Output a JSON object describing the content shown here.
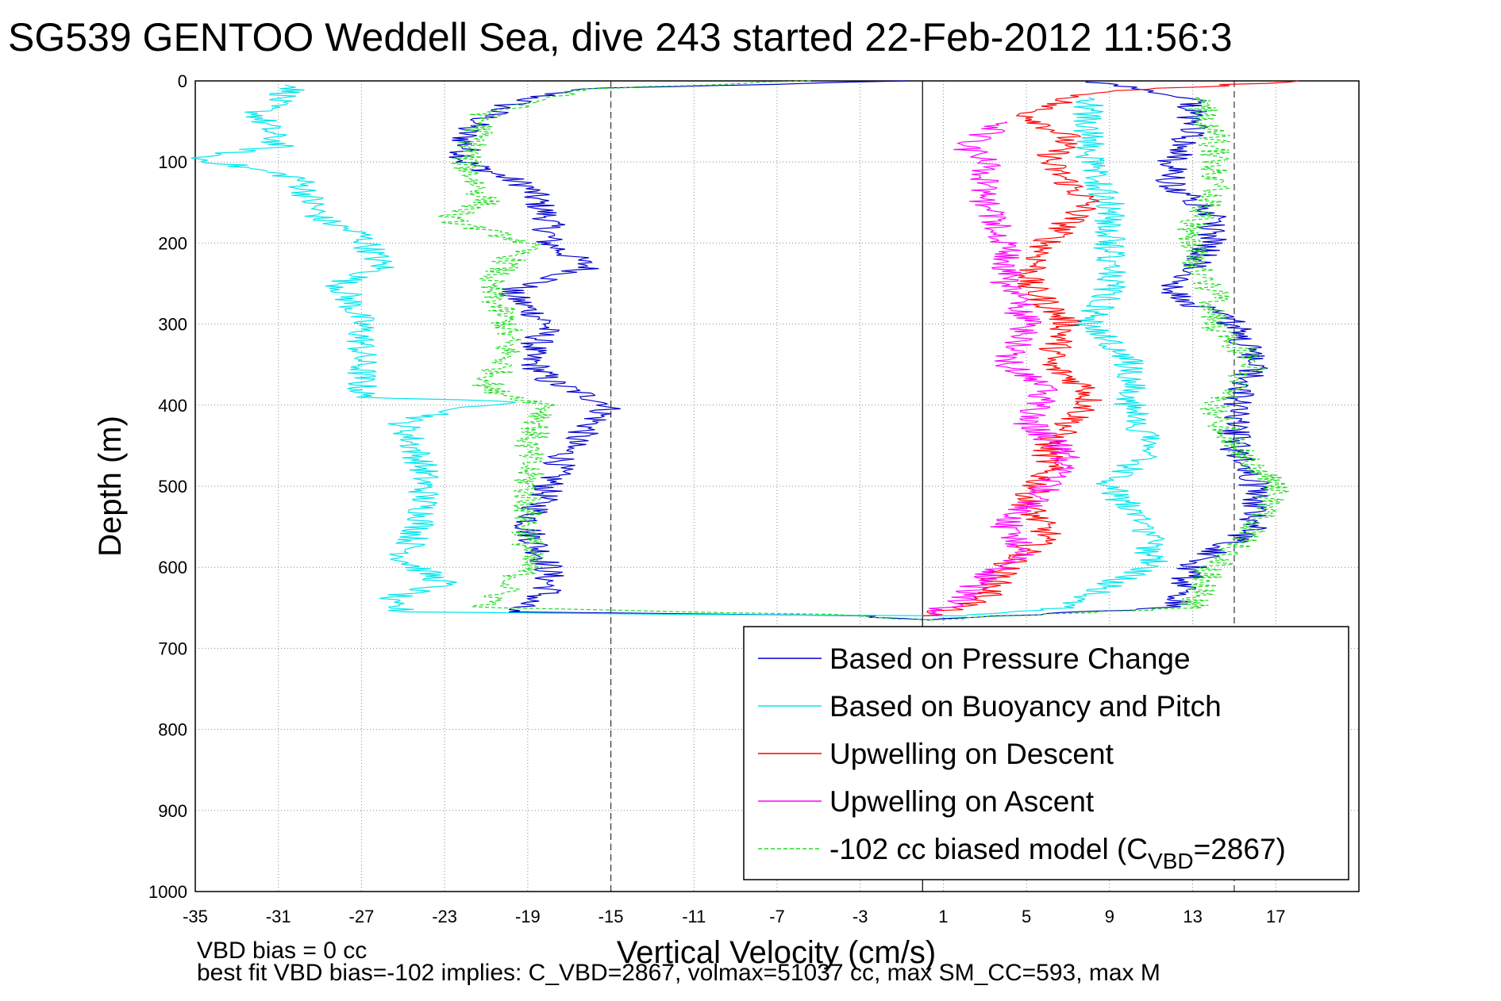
{
  "chart_data": {
    "type": "line",
    "title": "SG539 GENTOO Weddell Sea, dive 243 started 22-Feb-2012 11:56:3",
    "xlabel": "Vertical Velocity (cm/s)",
    "ylabel": "Depth (m)",
    "xlim": [
      -35,
      21
    ],
    "ylim": [
      0,
      1000
    ],
    "y_reversed": true,
    "xticks": [
      "-35",
      "-31",
      "-27",
      "-23",
      "-19",
      "-15",
      "-11",
      "-7",
      "-3",
      "1",
      "5",
      "9",
      "13",
      "17"
    ],
    "yticks": [
      "0",
      "100",
      "200",
      "300",
      "400",
      "500",
      "600",
      "700",
      "800",
      "900",
      "1000"
    ],
    "grid": true,
    "legend_position": "bottom-right",
    "reference_lines": [
      {
        "x": -15,
        "style": "dashed"
      },
      {
        "x": 0,
        "style": "solid"
      },
      {
        "x": 15,
        "style": "dashed"
      }
    ],
    "series": [
      {
        "name": "Based on Pressure Change",
        "color": "#0000cc",
        "style": "solid",
        "points": [
          [
            -1,
            0
          ],
          [
            -17,
            10
          ],
          [
            -20,
            30
          ],
          [
            -22,
            60
          ],
          [
            -22,
            100
          ],
          [
            -19,
            130
          ],
          [
            -18,
            170
          ],
          [
            -18,
            200
          ],
          [
            -16,
            230
          ],
          [
            -20,
            260
          ],
          [
            -18,
            300
          ],
          [
            -19,
            340
          ],
          [
            -18,
            370
          ],
          [
            -15,
            400
          ],
          [
            -17,
            450
          ],
          [
            -18,
            500
          ],
          [
            -19,
            550
          ],
          [
            -18,
            600
          ],
          [
            -18,
            630
          ],
          [
            -20,
            655
          ],
          [
            -3,
            660
          ],
          [
            0,
            665
          ],
          [
            4,
            660
          ],
          [
            12,
            650
          ],
          [
            13,
            600
          ],
          [
            16,
            550
          ],
          [
            16,
            500
          ],
          [
            15,
            450
          ],
          [
            15,
            400
          ],
          [
            16,
            350
          ],
          [
            15,
            300
          ],
          [
            12,
            260
          ],
          [
            13,
            230
          ],
          [
            14,
            200
          ],
          [
            14,
            160
          ],
          [
            12,
            130
          ],
          [
            12,
            100
          ],
          [
            13,
            60
          ],
          [
            13,
            20
          ],
          [
            8,
            0
          ]
        ]
      },
      {
        "name": "Based on Buoyancy and Pitch",
        "color": "#00e5ee",
        "style": "solid",
        "points": [
          [
            -30,
            5
          ],
          [
            -32,
            40
          ],
          [
            -31,
            80
          ],
          [
            -35,
            95
          ],
          [
            -30,
            120
          ],
          [
            -29,
            170
          ],
          [
            -27,
            190
          ],
          [
            -26,
            230
          ],
          [
            -28,
            250
          ],
          [
            -27,
            300
          ],
          [
            -27,
            350
          ],
          [
            -27,
            390
          ],
          [
            -20,
            395
          ],
          [
            -25,
            420
          ],
          [
            -24,
            480
          ],
          [
            -24,
            540
          ],
          [
            -25,
            590
          ],
          [
            -23,
            620
          ],
          [
            -26,
            640
          ],
          [
            -25,
            655
          ],
          [
            -12,
            658
          ],
          [
            2,
            660
          ],
          [
            7,
            650
          ],
          [
            9,
            620
          ],
          [
            11,
            600
          ],
          [
            11,
            560
          ],
          [
            9,
            500
          ],
          [
            11,
            450
          ],
          [
            10,
            400
          ],
          [
            10,
            350
          ],
          [
            9,
            320
          ],
          [
            8,
            300
          ],
          [
            9,
            260
          ],
          [
            9,
            200
          ],
          [
            9,
            150
          ],
          [
            8,
            100
          ],
          [
            8,
            60
          ],
          [
            8,
            20
          ]
        ]
      },
      {
        "name": "Upwelling on Descent",
        "color": "#ff0000",
        "style": "solid",
        "points": [
          [
            18,
            0
          ],
          [
            8,
            15
          ],
          [
            5,
            40
          ],
          [
            7,
            70
          ],
          [
            6,
            100
          ],
          [
            8,
            150
          ],
          [
            6,
            200
          ],
          [
            5,
            250
          ],
          [
            7,
            300
          ],
          [
            6,
            350
          ],
          [
            8,
            380
          ],
          [
            8,
            400
          ],
          [
            6,
            450
          ],
          [
            6,
            480
          ],
          [
            5,
            520
          ],
          [
            6,
            560
          ],
          [
            4,
            600
          ],
          [
            3,
            640
          ],
          [
            0,
            660
          ]
        ]
      },
      {
        "name": "Upwelling on Ascent",
        "color": "#ff00ff",
        "style": "solid",
        "points": [
          [
            0,
            660
          ],
          [
            2,
            640
          ],
          [
            3,
            610
          ],
          [
            5,
            580
          ],
          [
            4,
            550
          ],
          [
            6,
            500
          ],
          [
            7,
            460
          ],
          [
            5,
            420
          ],
          [
            6,
            380
          ],
          [
            4,
            350
          ],
          [
            5,
            300
          ],
          [
            4,
            250
          ],
          [
            4,
            200
          ],
          [
            3,
            150
          ],
          [
            3,
            100
          ],
          [
            2,
            80
          ],
          [
            4,
            50
          ]
        ]
      },
      {
        "name": "-102 cc biased model (C_VBD=2867)",
        "legend_text": "-102 cc biased model (C",
        "legend_sub": "VBD",
        "legend_tail": "=2867)",
        "color": "#22dd22",
        "style": "dashed",
        "points": [
          [
            -6,
            0
          ],
          [
            -16,
            10
          ],
          [
            -21,
            40
          ],
          [
            -22,
            100
          ],
          [
            -21,
            150
          ],
          [
            -23,
            170
          ],
          [
            -19,
            200
          ],
          [
            -21,
            250
          ],
          [
            -20,
            300
          ],
          [
            -20,
            340
          ],
          [
            -21,
            380
          ],
          [
            -18,
            400
          ],
          [
            -19,
            450
          ],
          [
            -19,
            500
          ],
          [
            -19,
            560
          ],
          [
            -19,
            600
          ],
          [
            -21,
            650
          ],
          [
            -5,
            658
          ],
          [
            0,
            665
          ],
          [
            13,
            650
          ],
          [
            14,
            600
          ],
          [
            16,
            550
          ],
          [
            17,
            500
          ],
          [
            15,
            450
          ],
          [
            14,
            400
          ],
          [
            16,
            350
          ],
          [
            14,
            300
          ],
          [
            14,
            260
          ],
          [
            13,
            220
          ],
          [
            13,
            180
          ],
          [
            14,
            140
          ],
          [
            14,
            100
          ],
          [
            14,
            60
          ],
          [
            13,
            20
          ]
        ]
      }
    ]
  },
  "footer": {
    "line1": "VBD bias = 0 cc",
    "line2": "best fit VBD bias=-102 implies: C_VBD=2867, volmax=51037 cc, max SM_CC=593, max M"
  }
}
